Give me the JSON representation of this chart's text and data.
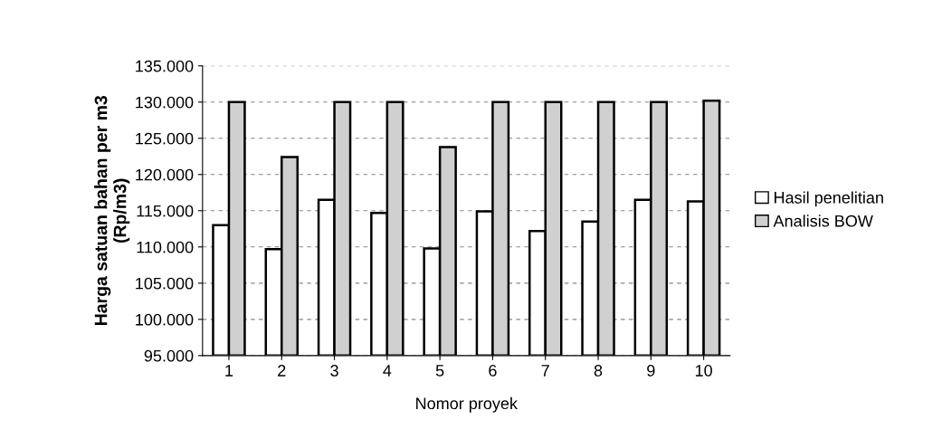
{
  "chart_data": {
    "type": "bar",
    "xlabel": "Nomor proyek",
    "ylabel": "Harga satuan bahan per m3\n(Rp/m3)",
    "categories": [
      "1",
      "2",
      "3",
      "4",
      "5",
      "6",
      "7",
      "8",
      "9",
      "10"
    ],
    "series": [
      {
        "name": "Hasil penelitian",
        "color": "#ffffff",
        "values": [
          113000,
          109700,
          116500,
          114700,
          109800,
          114900,
          112200,
          113500,
          116500,
          116300
        ]
      },
      {
        "name": "Analisis BOW",
        "color": "#d0d0d0",
        "values": [
          130000,
          122400,
          130000,
          130000,
          123800,
          130000,
          130000,
          130000,
          130000,
          130200
        ]
      }
    ],
    "ylim": [
      95000,
      135000
    ],
    "yticks": [
      {
        "value": 95000,
        "label": "95.000"
      },
      {
        "value": 100000,
        "label": "100.000"
      },
      {
        "value": 105000,
        "label": "105.000"
      },
      {
        "value": 110000,
        "label": "110.000"
      },
      {
        "value": 115000,
        "label": "115.000"
      },
      {
        "value": 120000,
        "label": "120.000"
      },
      {
        "value": 125000,
        "label": "125.000"
      },
      {
        "value": 130000,
        "label": "130.000"
      },
      {
        "value": 135000,
        "label": "135.000"
      }
    ],
    "grid": "y",
    "legend": "right"
  }
}
